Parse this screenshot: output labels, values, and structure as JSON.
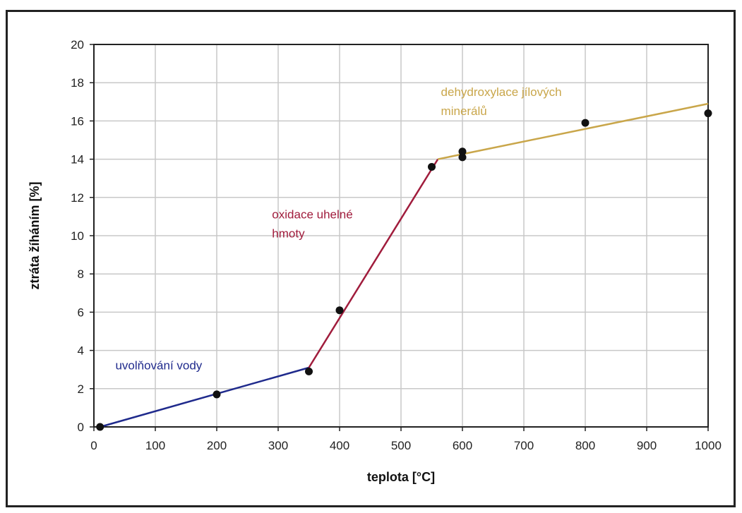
{
  "chart_data": {
    "type": "line",
    "xlabel": "teplota [°C]",
    "ylabel": "ztráta žíháním [%]",
    "xlim": [
      0,
      1000
    ],
    "ylim": [
      0,
      20
    ],
    "xticks": [
      0,
      100,
      200,
      300,
      400,
      500,
      600,
      700,
      800,
      900,
      1000
    ],
    "yticks": [
      0,
      2,
      4,
      6,
      8,
      10,
      12,
      14,
      16,
      18,
      20
    ],
    "grid": true,
    "points": {
      "x": [
        10,
        200,
        350,
        400,
        550,
        600,
        600,
        800,
        1000
      ],
      "y": [
        0.0,
        1.7,
        2.9,
        6.1,
        13.6,
        14.1,
        14.4,
        15.9,
        16.4
      ]
    },
    "series": [
      {
        "name": "uvolňování vody",
        "color": "#1f2a8c",
        "x": [
          10,
          350
        ],
        "y": [
          0.0,
          3.1
        ]
      },
      {
        "name": "oxidace uhelné hmoty",
        "color": "#a01c3c",
        "x": [
          350,
          560
        ],
        "y": [
          3.1,
          14.0
        ]
      },
      {
        "name": "dehydroxylace jílových minerálů",
        "color": "#c9a64a",
        "x": [
          560,
          1000
        ],
        "y": [
          14.0,
          16.9
        ]
      }
    ],
    "annotations": [
      {
        "lines": [
          "uvolňování vody"
        ],
        "x": 35,
        "y": 3.0,
        "color": "#1f2a8c"
      },
      {
        "lines": [
          "oxidace uhelné",
          "hmoty"
        ],
        "x": 290,
        "y": 10.9,
        "color": "#a01c3c"
      },
      {
        "lines": [
          "dehydroxylace jílových",
          "minerálů"
        ],
        "x": 565,
        "y": 17.3,
        "color": "#c9a64a"
      }
    ],
    "marker_color": "#111111"
  }
}
